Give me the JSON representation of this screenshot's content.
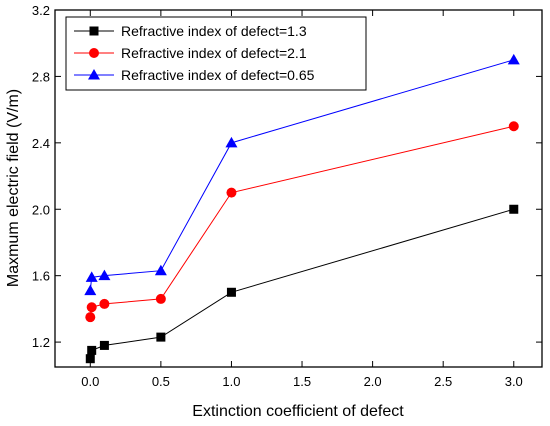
{
  "chart_data": {
    "type": "line",
    "title": "",
    "xlabel": "Extinction coefficient  of  defect",
    "ylabel": "Maxmum electric field (V/m)",
    "xlim": [
      -0.25,
      3.2
    ],
    "ylim": [
      1.05,
      3.2
    ],
    "xticks": [
      0.0,
      0.5,
      1.0,
      1.5,
      2.0,
      2.5,
      3.0
    ],
    "xtick_labels": [
      "0.0",
      "0.5",
      "1.0",
      "1.5",
      "2.0",
      "2.5",
      "3.0"
    ],
    "yticks": [
      1.2,
      1.6,
      2.0,
      2.4,
      2.8,
      3.2
    ],
    "ytick_labels": [
      "1.2",
      "1.6",
      "2.0",
      "2.4",
      "2.8",
      "3.2"
    ],
    "grid": false,
    "legend_position": "top-left",
    "series": [
      {
        "name": "Refractive index of  defect=1.3",
        "color": "#000000",
        "marker": "square",
        "x": [
          0,
          0.01,
          0.1,
          0.5,
          1.0,
          3.0
        ],
        "y": [
          1.1,
          1.15,
          1.18,
          1.23,
          1.5,
          2.0
        ]
      },
      {
        "name": "Refractive index of  defect=2.1",
        "color": "#ff0000",
        "marker": "circle",
        "x": [
          0,
          0.01,
          0.1,
          0.5,
          1.0,
          3.0
        ],
        "y": [
          1.35,
          1.41,
          1.43,
          1.46,
          2.1,
          2.5
        ]
      },
      {
        "name": "Refractive index of  defect=0.65",
        "color": "#0000ff",
        "marker": "triangle",
        "x": [
          0,
          0.01,
          0.1,
          0.5,
          1.0,
          3.0
        ],
        "y": [
          1.51,
          1.59,
          1.6,
          1.63,
          2.4,
          2.9
        ]
      }
    ]
  }
}
